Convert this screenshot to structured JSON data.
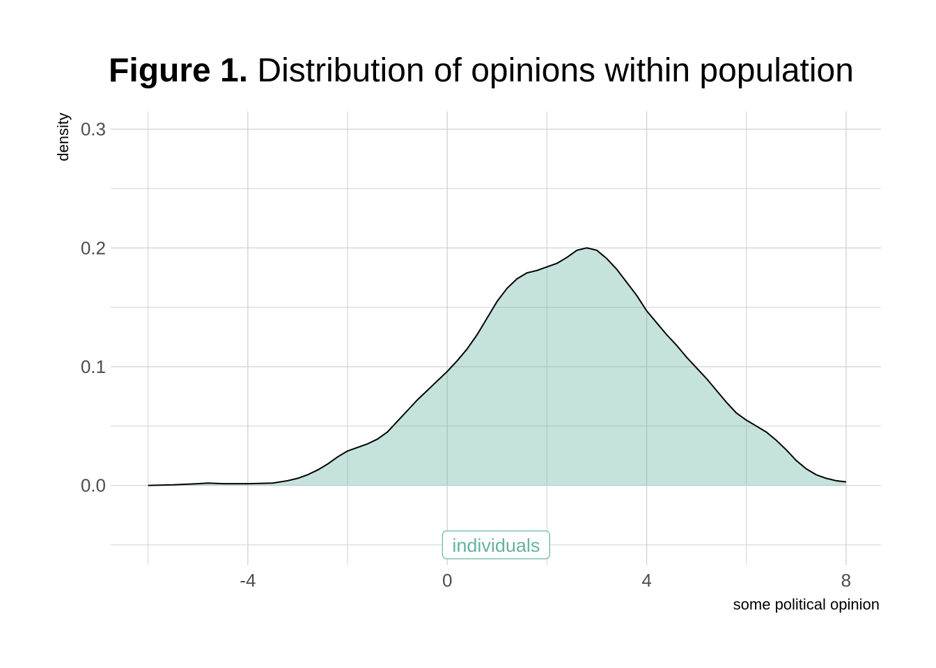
{
  "chart_data": {
    "type": "area",
    "title_bold": "Figure 1.",
    "title_rest": "Distribution of opinions within population",
    "xlabel": "some political opinion",
    "ylabel": "density",
    "xlim": [
      -6.75,
      8.7
    ],
    "ylim": [
      -0.067,
      0.315
    ],
    "x_ticks": [
      -4,
      0,
      4,
      8
    ],
    "x_tick_labels": [
      "-4",
      "0",
      "4",
      "8"
    ],
    "x_minor_ticks": [
      -6,
      -2,
      2,
      6
    ],
    "y_ticks": [
      0.0,
      0.1,
      0.2,
      0.3
    ],
    "y_tick_labels": [
      "0.0",
      "0.1",
      "0.2",
      "0.3"
    ],
    "y_minor_ticks": [
      -0.05,
      0.05,
      0.15,
      0.25
    ],
    "grid": true,
    "series": [
      {
        "fill_color": "#66b2a4",
        "line_color": "#000000",
        "x": [
          -6.0,
          -5.5,
          -5.0,
          -4.8,
          -4.5,
          -4.0,
          -3.5,
          -3.2,
          -3.0,
          -2.8,
          -2.6,
          -2.4,
          -2.2,
          -2.0,
          -1.8,
          -1.6,
          -1.4,
          -1.2,
          -1.0,
          -0.8,
          -0.6,
          -0.4,
          -0.2,
          0.0,
          0.2,
          0.4,
          0.6,
          0.8,
          1.0,
          1.2,
          1.4,
          1.6,
          1.8,
          2.0,
          2.2,
          2.4,
          2.6,
          2.8,
          3.0,
          3.2,
          3.4,
          3.6,
          3.8,
          4.0,
          4.2,
          4.4,
          4.6,
          4.8,
          5.0,
          5.2,
          5.4,
          5.6,
          5.8,
          6.0,
          6.2,
          6.4,
          6.6,
          6.8,
          7.0,
          7.2,
          7.4,
          7.6,
          7.8,
          8.0
        ],
        "y": [
          0.0,
          0.0005,
          0.0015,
          0.002,
          0.0015,
          0.0015,
          0.002,
          0.004,
          0.006,
          0.009,
          0.013,
          0.018,
          0.024,
          0.029,
          0.032,
          0.035,
          0.039,
          0.045,
          0.054,
          0.063,
          0.072,
          0.08,
          0.088,
          0.096,
          0.105,
          0.115,
          0.127,
          0.141,
          0.155,
          0.166,
          0.174,
          0.179,
          0.181,
          0.184,
          0.187,
          0.192,
          0.198,
          0.2,
          0.198,
          0.191,
          0.182,
          0.171,
          0.16,
          0.147,
          0.137,
          0.127,
          0.118,
          0.108,
          0.099,
          0.09,
          0.08,
          0.07,
          0.061,
          0.055,
          0.05,
          0.045,
          0.038,
          0.03,
          0.021,
          0.014,
          0.009,
          0.006,
          0.004,
          0.003
        ]
      }
    ],
    "annotation": {
      "text": "individuals",
      "x": 2.0,
      "y": -0.05,
      "color": "#66b2a4"
    },
    "colors": {
      "fill": "#66b2a4",
      "grid": "#d1d1d1",
      "tick_text": "#4d4d4d",
      "background": "#ffffff"
    }
  }
}
